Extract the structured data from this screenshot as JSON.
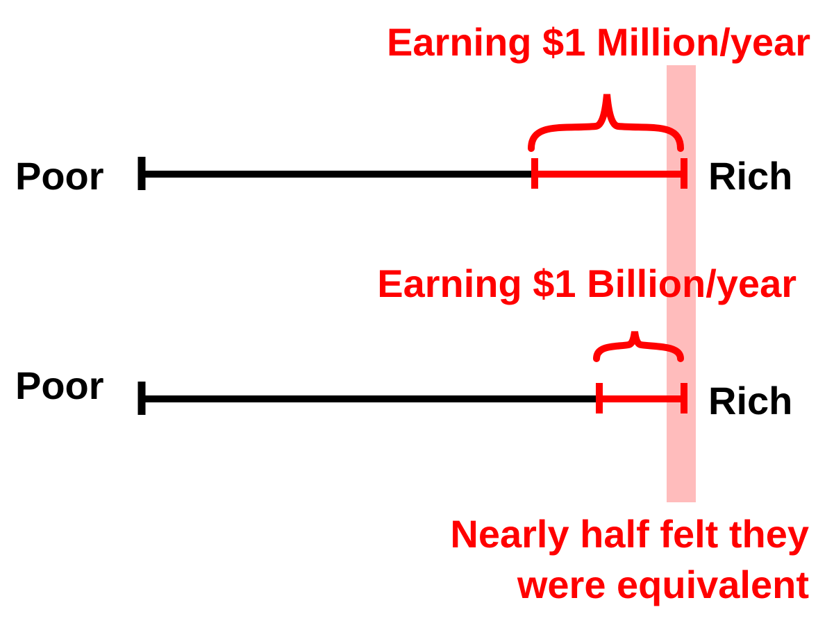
{
  "colors": {
    "black": "#000000",
    "red": "#ff0000",
    "highlight": "#ffbcbc"
  },
  "scales": [
    {
      "left_label": "Poor",
      "right_label": "Rich",
      "caption": "Earning $1 Million/year"
    },
    {
      "left_label": "Poor",
      "right_label": "Rich",
      "caption": "Earning $1 Billion/year"
    }
  ],
  "conclusion": {
    "line1": "Nearly half felt they",
    "line2": "were equivalent"
  }
}
